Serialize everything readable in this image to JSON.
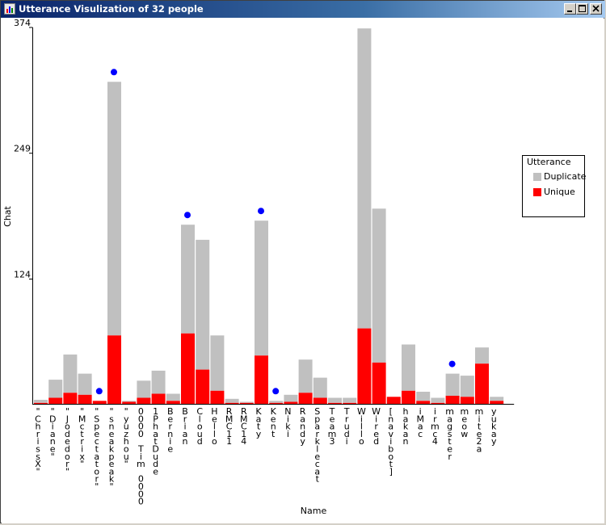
{
  "window": {
    "title": "Utterance Visulization of 32 people",
    "icons": {
      "app": "chart-app-icon",
      "minimize": "minimize-icon",
      "maximize": "maximize-icon",
      "close": "close-icon"
    }
  },
  "colors": {
    "duplicate": "#c0c0c0",
    "unique": "#ff0000",
    "dot": "#0000ff",
    "axis": "#000000"
  },
  "legend": {
    "title": "Utterance",
    "items": [
      {
        "label": "Duplicate",
        "color": "#c0c0c0"
      },
      {
        "label": "Unique",
        "color": "#ff0000"
      }
    ]
  },
  "chart_data": {
    "type": "bar",
    "stacked": true,
    "title": "Utterance Visulization of 32 people",
    "xlabel": "Name",
    "ylabel": "Chat",
    "ylim": [
      0,
      374
    ],
    "yticks": [
      124,
      249,
      374
    ],
    "categories": [
      "\"ChrissX\"",
      "\"Diane\"",
      "\"Jodedor\"",
      "\"Mctrix\"",
      "\"Spectator\"",
      "\"sneakpeak\"",
      "\"yuzhou\"",
      "0000 Tim 0000",
      "1PhatDude",
      "Bernie",
      "Brian",
      "Cloud",
      "Hello",
      "RMC11",
      "RMC14",
      "Katy",
      "Kent",
      "Niki",
      "Randy",
      "Sparklecat",
      "Team3",
      "Trudi",
      "Willo",
      "Wired",
      "[navibot]",
      "hakan",
      "iMac",
      "irmc4",
      "magster",
      "meow",
      "mite2a",
      "yukay"
    ],
    "series": [
      {
        "name": "Unique",
        "values": [
          1,
          6,
          11,
          9,
          3,
          68,
          2,
          6,
          10,
          3,
          70,
          34,
          13,
          1,
          1,
          48,
          1,
          2,
          11,
          6,
          1,
          1,
          75,
          41,
          7,
          13,
          3,
          1,
          8,
          7,
          40,
          3
        ]
      },
      {
        "name": "Duplicate",
        "values": [
          3,
          18,
          38,
          21,
          0,
          252,
          1,
          17,
          23,
          7,
          108,
          129,
          55,
          4,
          1,
          134,
          2,
          7,
          33,
          20,
          5,
          5,
          298,
          153,
          0,
          46,
          9,
          5,
          22,
          21,
          16,
          4
        ]
      }
    ],
    "markers": [
      0,
      0,
      0,
      0,
      1,
      1,
      0,
      0,
      0,
      0,
      1,
      0,
      0,
      0,
      0,
      1,
      1,
      0,
      0,
      0,
      0,
      0,
      0,
      0,
      0,
      0,
      0,
      0,
      1,
      0,
      0,
      0
    ],
    "legend_position": "right"
  }
}
